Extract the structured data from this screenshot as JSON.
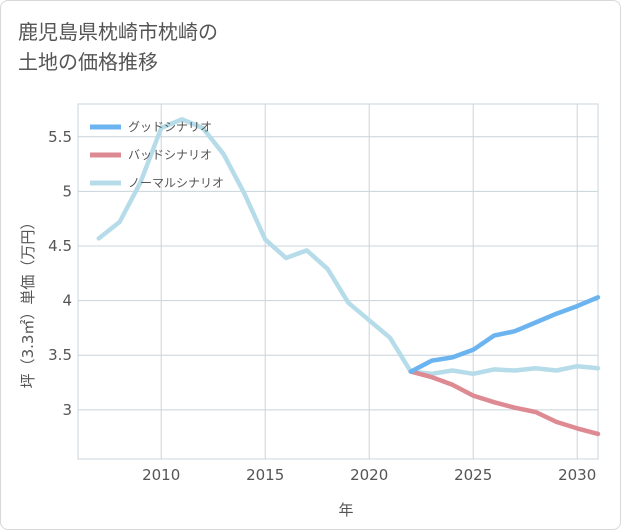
{
  "title": "鹿児島県枕崎市枕崎の\n土地の価格推移",
  "chart_data": {
    "type": "line",
    "xlabel": "年",
    "ylabel": "坪（3.3㎡）単価（万円）",
    "xlim": [
      2006,
      2031
    ],
    "ylim": [
      2.55,
      5.8
    ],
    "xticks": [
      2010,
      2015,
      2020,
      2025,
      2030
    ],
    "yticks": [
      3,
      3.5,
      4,
      4.5,
      5,
      5.5
    ],
    "ytick_labels": [
      "3",
      "3.5",
      "4",
      "4.5",
      "5",
      "5.5"
    ],
    "grid": true,
    "legend_position": "top-left",
    "series": [
      {
        "name": "グッドシナリオ",
        "color": "#6cb4ef",
        "x": [
          2022,
          2023,
          2024,
          2025,
          2026,
          2027,
          2028,
          2029,
          2030,
          2031
        ],
        "values": [
          3.35,
          3.45,
          3.48,
          3.55,
          3.68,
          3.72,
          3.8,
          3.88,
          3.95,
          4.03
        ]
      },
      {
        "name": "バッドシナリオ",
        "color": "#de8a93",
        "x": [
          2022,
          2023,
          2024,
          2025,
          2026,
          2027,
          2028,
          2029,
          2030,
          2031
        ],
        "values": [
          3.35,
          3.3,
          3.23,
          3.13,
          3.07,
          3.02,
          2.98,
          2.89,
          2.83,
          2.78
        ]
      },
      {
        "name": "ノーマルシナリオ",
        "color": "#b6dcea",
        "x": [
          2007,
          2008,
          2009,
          2010,
          2011,
          2012,
          2013,
          2014,
          2015,
          2016,
          2017,
          2018,
          2019,
          2020,
          2021,
          2022,
          2023,
          2024,
          2025,
          2026,
          2027,
          2028,
          2029,
          2030,
          2031
        ],
        "values": [
          4.57,
          4.72,
          5.08,
          5.58,
          5.66,
          5.58,
          5.34,
          4.98,
          4.56,
          4.39,
          4.46,
          4.29,
          3.98,
          3.82,
          3.66,
          3.35,
          3.33,
          3.36,
          3.33,
          3.37,
          3.36,
          3.38,
          3.36,
          3.4,
          3.38
        ]
      }
    ]
  }
}
